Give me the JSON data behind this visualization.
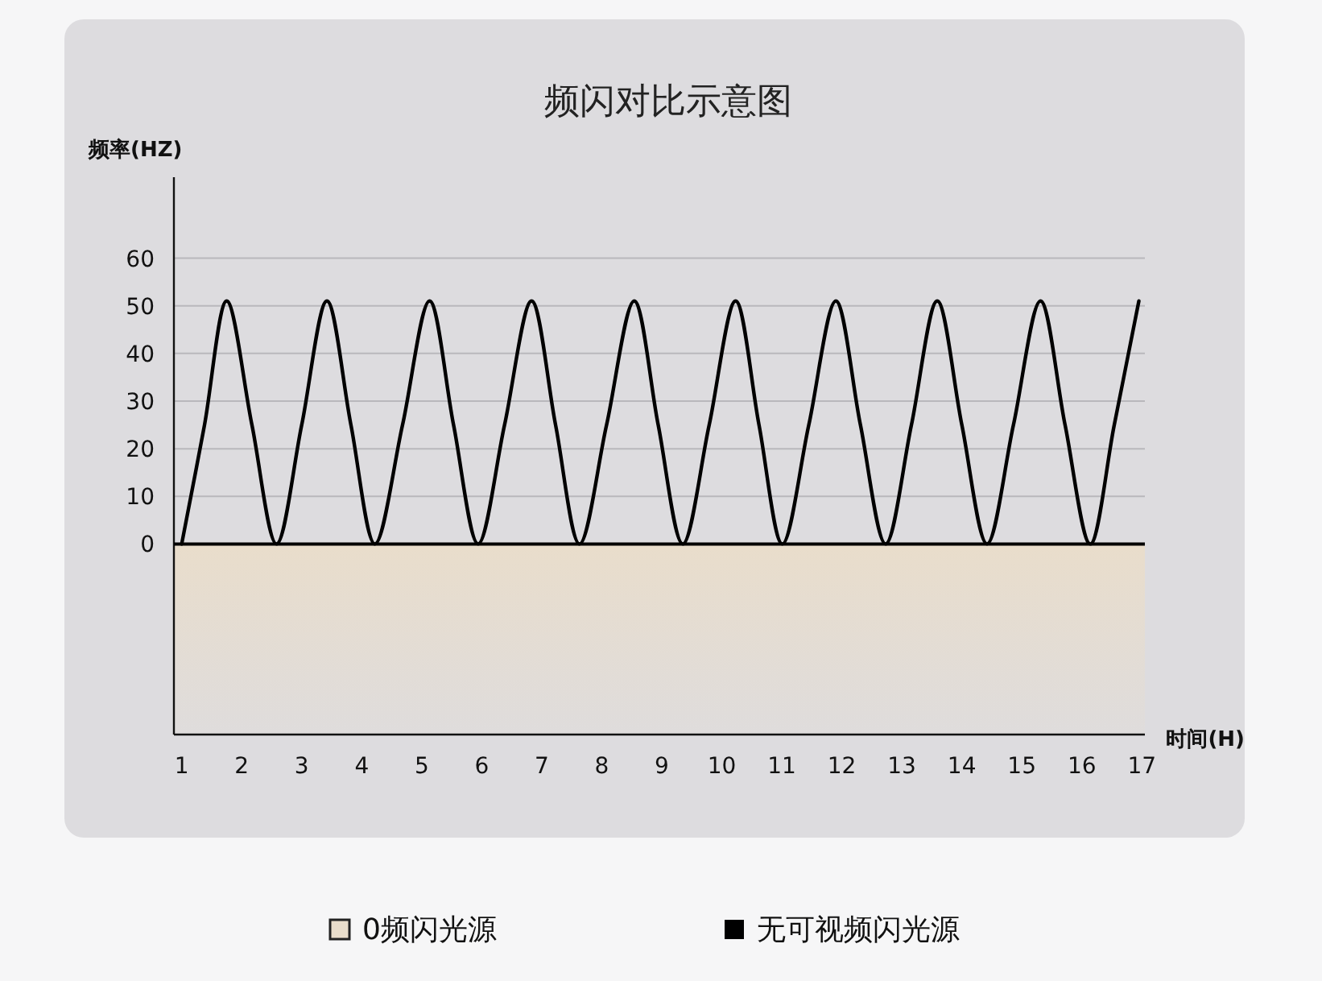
{
  "chart_data": {
    "type": "line",
    "title": "频闪对比示意图",
    "xlabel": "时间(H)",
    "ylabel": "频率(HZ)",
    "xlim": [
      0.87,
      17.05
    ],
    "xticks": [
      1,
      2,
      3,
      4,
      5,
      6,
      7,
      8,
      9,
      10,
      11,
      12,
      13,
      14,
      15,
      16,
      17
    ],
    "ylim": [
      -40,
      77
    ],
    "yticks": [
      0,
      10,
      20,
      30,
      40,
      50,
      60
    ],
    "grid": "y",
    "legend": "bottom",
    "marker": "none",
    "line_style": "solid",
    "bands": [
      {
        "axis": "y",
        "from": -40,
        "to": 0,
        "label": "0频闪光源",
        "color": "#e9ddcb"
      }
    ],
    "series": [
      {
        "name": "无可视频闪光源",
        "color": "#000000",
        "x": [
          1.0,
          1.38,
          1.75,
          2.17,
          2.58,
          3.0,
          3.42,
          3.82,
          4.22,
          4.68,
          5.13,
          5.53,
          5.94,
          6.38,
          6.83,
          7.23,
          7.63,
          8.08,
          8.54,
          8.94,
          9.35,
          9.79,
          10.23,
          10.62,
          11.01,
          11.45,
          11.9,
          12.31,
          12.73,
          13.16,
          13.59,
          14.0,
          14.42,
          14.86,
          15.31,
          15.72,
          16.14,
          16.54,
          16.95
        ],
        "values": [
          0,
          25,
          51,
          25,
          0,
          25,
          51,
          25,
          0,
          25,
          51,
          25,
          0,
          25,
          51,
          25,
          0,
          25,
          51,
          25,
          0,
          25,
          51,
          25,
          0,
          25,
          51,
          25,
          0,
          25,
          51,
          25,
          0,
          25,
          51,
          25,
          0,
          25,
          51
        ]
      }
    ]
  }
}
